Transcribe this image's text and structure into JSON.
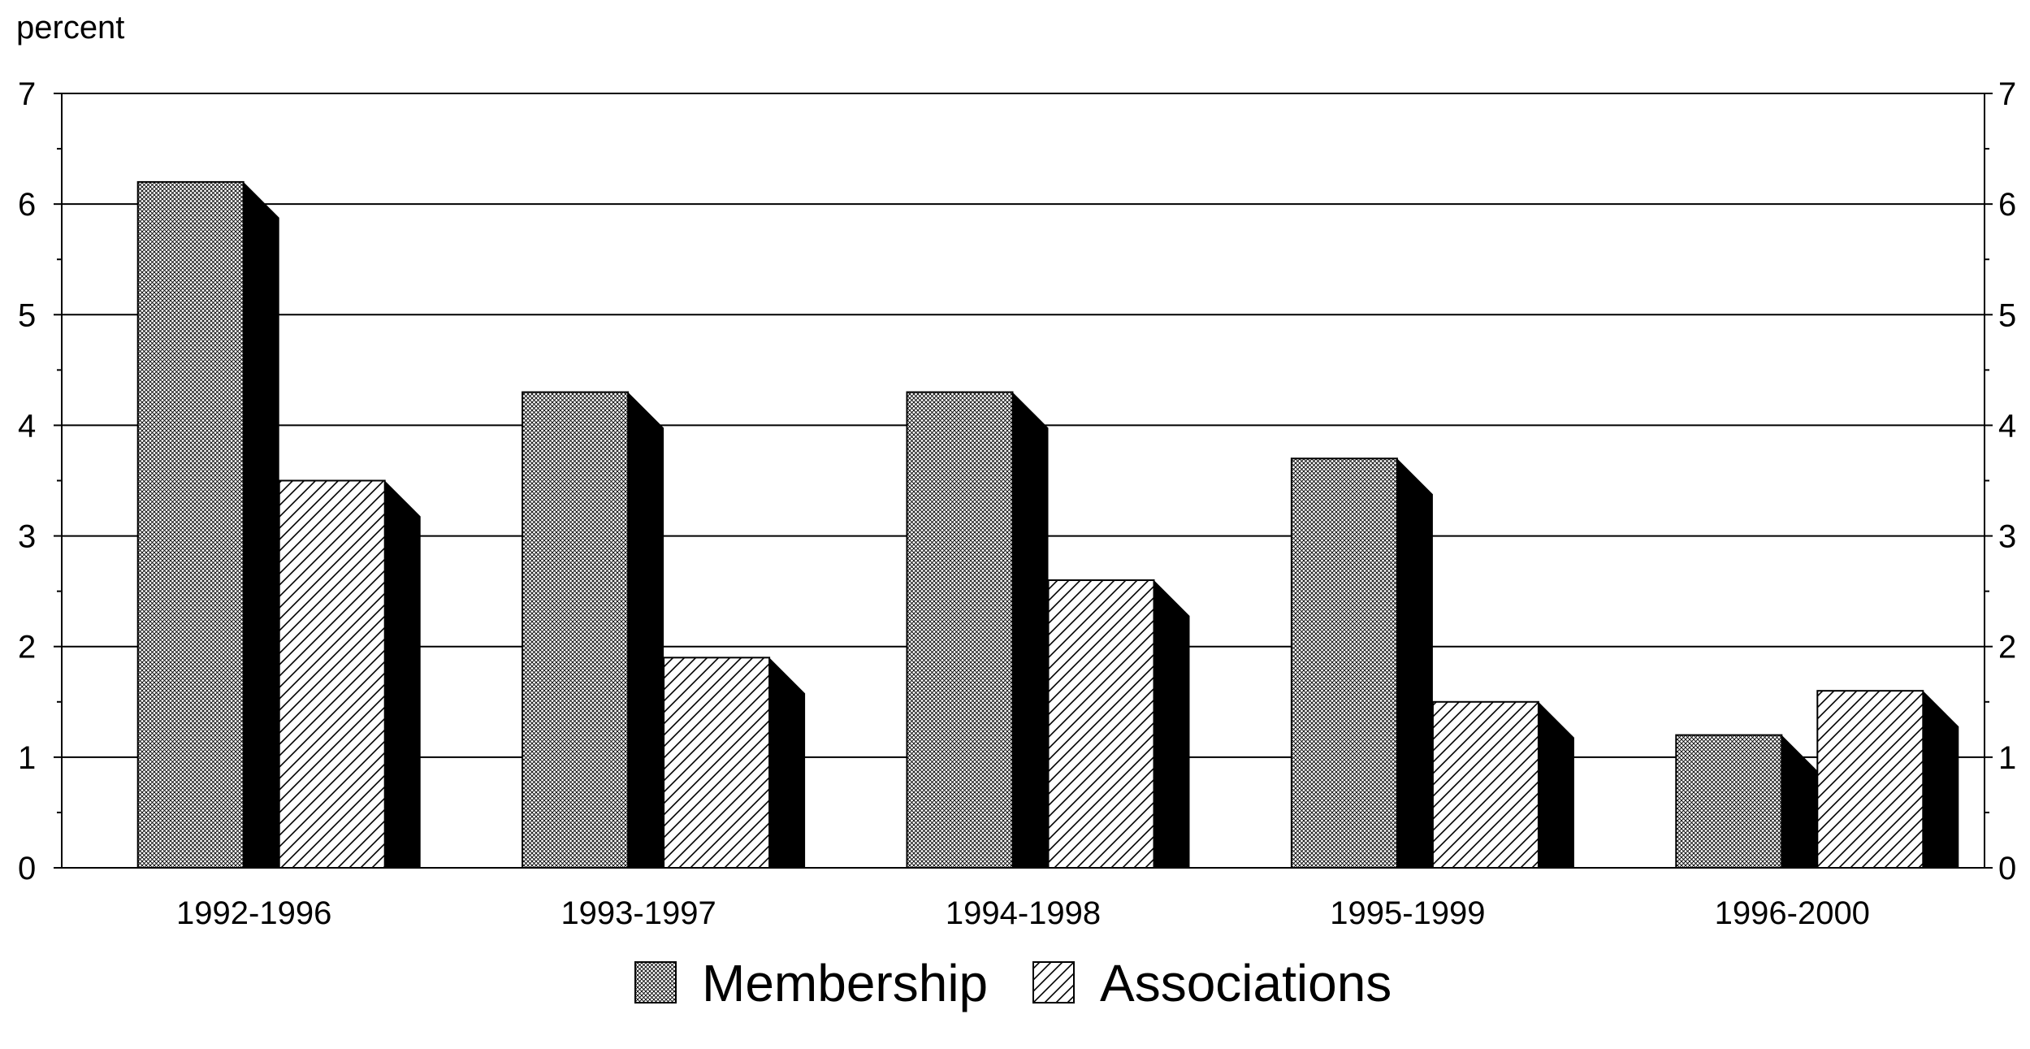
{
  "chart_data": {
    "type": "bar",
    "ylabel": "percent",
    "categories": [
      "1992-1996",
      "1993-1997",
      "1994-1998",
      "1995-1999",
      "1996-2000"
    ],
    "series": [
      {
        "name": "Membership",
        "pattern": "crosshatch",
        "values": [
          6.2,
          4.3,
          4.3,
          3.7,
          1.2
        ]
      },
      {
        "name": "Associations",
        "pattern": "diagonal",
        "values": [
          3.5,
          1.9,
          2.6,
          1.5,
          1.6
        ]
      }
    ],
    "ylim": [
      0,
      7
    ],
    "yticks": [
      "0",
      "1",
      "2",
      "3",
      "4",
      "5",
      "6",
      "7"
    ],
    "grid": true,
    "secondary_y_axis": true,
    "legend_position": "bottom-center",
    "bar_style": "3d",
    "colors": {
      "shadow": "#000000",
      "grid": "#000000",
      "bar_fill": "#ffffff"
    }
  }
}
